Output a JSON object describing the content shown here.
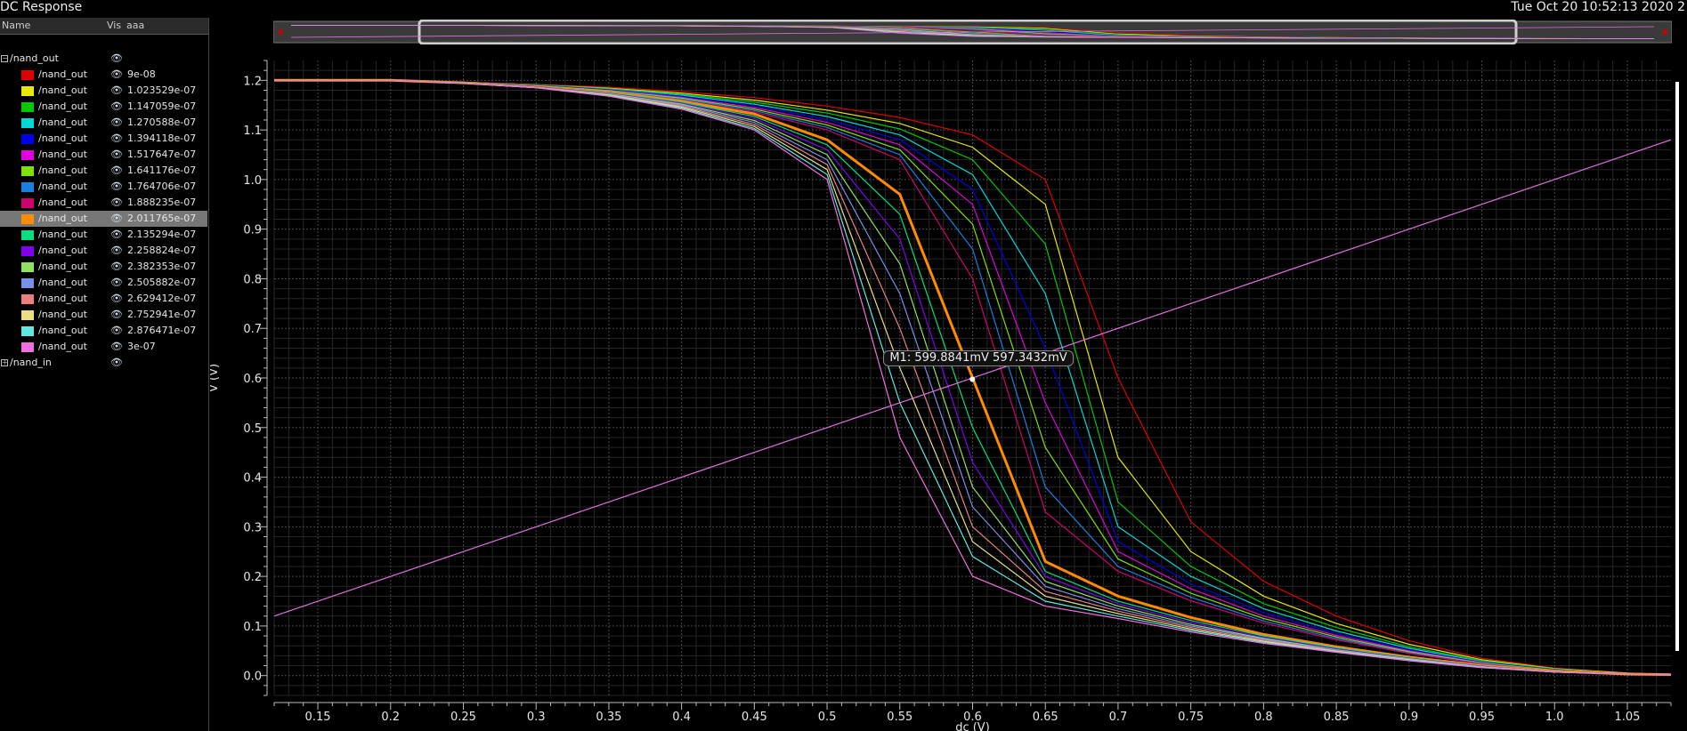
{
  "window": {
    "title": "DC Response",
    "date": "Tue Oct 20 10:52:13 2020  2"
  },
  "panel": {
    "headers": {
      "name": "Name",
      "vis": "Vis",
      "aaa": "aaa"
    },
    "groups": [
      {
        "name": "/nand_out",
        "expanded": true,
        "expander": "−"
      },
      {
        "name": "/nand_in",
        "expanded": false,
        "expander": "+"
      }
    ],
    "eye_glyph": "👁",
    "items": [
      {
        "name": "/nand_out",
        "value": "9e-08",
        "color": "#e00000"
      },
      {
        "name": "/nand_out",
        "value": "1.023529e-07",
        "color": "#e8e800"
      },
      {
        "name": "/nand_out",
        "value": "1.147059e-07",
        "color": "#00c800"
      },
      {
        "name": "/nand_out",
        "value": "1.270588e-07",
        "color": "#00d8d8"
      },
      {
        "name": "/nand_out",
        "value": "1.394118e-07",
        "color": "#0000e8"
      },
      {
        "name": "/nand_out",
        "value": "1.517647e-07",
        "color": "#e000e0"
      },
      {
        "name": "/nand_out",
        "value": "1.641176e-07",
        "color": "#80e000"
      },
      {
        "name": "/nand_out",
        "value": "1.764706e-07",
        "color": "#1880e0"
      },
      {
        "name": "/nand_out",
        "value": "1.888235e-07",
        "color": "#d00070"
      },
      {
        "name": "/nand_out",
        "value": "2.011765e-07",
        "color": "#ff8c00",
        "selected": true
      },
      {
        "name": "/nand_out",
        "value": "2.135294e-07",
        "color": "#00e080"
      },
      {
        "name": "/nand_out",
        "value": "2.258824e-07",
        "color": "#8000f0"
      },
      {
        "name": "/nand_out",
        "value": "2.382353e-07",
        "color": "#90e060"
      },
      {
        "name": "/nand_out",
        "value": "2.505882e-07",
        "color": "#7890e8"
      },
      {
        "name": "/nand_out",
        "value": "2.629412e-07",
        "color": "#e88080"
      },
      {
        "name": "/nand_out",
        "value": "2.752941e-07",
        "color": "#e8e080"
      },
      {
        "name": "/nand_out",
        "value": "2.876471e-07",
        "color": "#60e8e0"
      },
      {
        "name": "/nand_out",
        "value": "3e-07",
        "color": "#f070e0"
      }
    ]
  },
  "marker": {
    "label": "M1: 599.8841mV 597.3432mV",
    "x": 0.5999,
    "y": 0.5973
  },
  "chart_data": {
    "type": "line",
    "xlabel": "dc (V)",
    "ylabel": "V (V)",
    "xlim": [
      0.12,
      1.08
    ],
    "ylim": [
      -0.04,
      1.24
    ],
    "xticks": [
      0.15,
      0.2,
      0.25,
      0.3,
      0.35,
      0.4,
      0.45,
      0.5,
      0.55,
      0.6,
      0.65,
      0.7,
      0.75,
      0.8,
      0.85,
      0.9,
      0.95,
      1.0,
      1.05
    ],
    "xtick_labels": [
      "0.15",
      "0.2",
      "0.25",
      "0.3",
      "0.35",
      "0.4",
      "0.45",
      "0.5",
      "0.55",
      "0.6",
      "0.65",
      "0.7",
      "0.75",
      "0.8",
      "0.85",
      "0.9",
      "0.95",
      "1.0",
      "1.05"
    ],
    "yticks": [
      0.0,
      0.1,
      0.2,
      0.3,
      0.4,
      0.5,
      0.6,
      0.7,
      0.8,
      0.9,
      1.0,
      1.1,
      1.2
    ],
    "ytick_labels": [
      "0.0",
      "0.1",
      "0.2",
      "0.3",
      "0.4",
      "0.5",
      "0.6",
      "0.7",
      "0.8",
      "0.9",
      "1.0",
      "1.1",
      "1.2"
    ],
    "grid": true,
    "x": [
      0.12,
      0.2,
      0.25,
      0.3,
      0.35,
      0.4,
      0.45,
      0.5,
      0.55,
      0.6,
      0.65,
      0.7,
      0.75,
      0.8,
      0.85,
      0.9,
      0.95,
      1.0,
      1.05,
      1.08
    ],
    "series": [
      {
        "name": "/nand_out 9e-08",
        "color": "#e00000",
        "values": [
          1.2,
          1.2,
          1.196,
          1.192,
          1.186,
          1.177,
          1.165,
          1.148,
          1.125,
          1.09,
          1.0,
          0.6,
          0.31,
          0.19,
          0.12,
          0.07,
          0.035,
          0.015,
          0.005,
          0.002
        ]
      },
      {
        "name": "/nand_out 1.023529e-07",
        "color": "#e8e800",
        "values": [
          1.2,
          1.2,
          1.196,
          1.191,
          1.184,
          1.174,
          1.16,
          1.14,
          1.113,
          1.065,
          0.95,
          0.44,
          0.25,
          0.16,
          0.105,
          0.063,
          0.032,
          0.014,
          0.005,
          0.002
        ]
      },
      {
        "name": "/nand_out 1.147059e-07",
        "color": "#00c800",
        "values": [
          1.2,
          1.2,
          1.196,
          1.191,
          1.183,
          1.172,
          1.156,
          1.134,
          1.102,
          1.04,
          0.87,
          0.35,
          0.22,
          0.145,
          0.097,
          0.058,
          0.03,
          0.013,
          0.004,
          0.002
        ]
      },
      {
        "name": "/nand_out 1.270588e-07",
        "color": "#00d8d8",
        "values": [
          1.2,
          1.2,
          1.196,
          1.19,
          1.182,
          1.17,
          1.152,
          1.127,
          1.09,
          1.01,
          0.77,
          0.3,
          0.2,
          0.135,
          0.09,
          0.055,
          0.028,
          0.012,
          0.004,
          0.002
        ]
      },
      {
        "name": "/nand_out 1.394118e-07",
        "color": "#0000e8",
        "values": [
          1.2,
          1.2,
          1.196,
          1.19,
          1.181,
          1.168,
          1.149,
          1.121,
          1.08,
          0.98,
          0.66,
          0.27,
          0.185,
          0.127,
          0.085,
          0.052,
          0.027,
          0.012,
          0.004,
          0.002
        ]
      },
      {
        "name": "/nand_out 1.517647e-07",
        "color": "#e000e0",
        "values": [
          1.2,
          1.2,
          1.195,
          1.189,
          1.18,
          1.166,
          1.145,
          1.115,
          1.07,
          0.95,
          0.55,
          0.25,
          0.175,
          0.12,
          0.081,
          0.05,
          0.026,
          0.011,
          0.004,
          0.002
        ]
      },
      {
        "name": "/nand_out 1.641176e-07",
        "color": "#80e000",
        "values": [
          1.2,
          1.2,
          1.195,
          1.189,
          1.179,
          1.164,
          1.142,
          1.11,
          1.06,
          0.91,
          0.46,
          0.235,
          0.166,
          0.115,
          0.078,
          0.048,
          0.025,
          0.011,
          0.004,
          0.002
        ]
      },
      {
        "name": "/nand_out 1.764706e-07",
        "color": "#1880e0",
        "values": [
          1.2,
          1.2,
          1.195,
          1.188,
          1.178,
          1.162,
          1.139,
          1.105,
          1.05,
          0.86,
          0.38,
          0.22,
          0.158,
          0.11,
          0.075,
          0.046,
          0.024,
          0.01,
          0.004,
          0.002
        ]
      },
      {
        "name": "/nand_out 1.888235e-07",
        "color": "#d00070",
        "values": [
          1.2,
          1.2,
          1.195,
          1.188,
          1.177,
          1.16,
          1.136,
          1.1,
          1.04,
          0.8,
          0.33,
          0.21,
          0.151,
          0.106,
          0.072,
          0.045,
          0.023,
          0.01,
          0.004,
          0.002
        ]
      },
      {
        "name": "/nand_out 2.011765e-07",
        "color": "#ff8c00",
        "values": [
          1.2,
          1.2,
          1.195,
          1.187,
          1.176,
          1.158,
          1.132,
          1.08,
          0.97,
          0.6,
          0.23,
          0.16,
          0.117,
          0.083,
          0.058,
          0.037,
          0.02,
          0.009,
          0.003,
          0.002
        ]
      },
      {
        "name": "/nand_out 2.135294e-07",
        "color": "#00e080",
        "values": [
          1.2,
          1.2,
          1.195,
          1.187,
          1.175,
          1.156,
          1.127,
          1.07,
          0.93,
          0.5,
          0.21,
          0.15,
          0.111,
          0.08,
          0.056,
          0.036,
          0.019,
          0.008,
          0.003,
          0.002
        ]
      },
      {
        "name": "/nand_out 2.258824e-07",
        "color": "#8000f0",
        "values": [
          1.2,
          1.2,
          1.195,
          1.187,
          1.174,
          1.154,
          1.123,
          1.06,
          0.88,
          0.43,
          0.2,
          0.145,
          0.107,
          0.077,
          0.054,
          0.035,
          0.019,
          0.008,
          0.003,
          0.002
        ]
      },
      {
        "name": "/nand_out 2.382353e-07",
        "color": "#90e060",
        "values": [
          1.2,
          1.2,
          1.195,
          1.186,
          1.173,
          1.152,
          1.119,
          1.05,
          0.83,
          0.38,
          0.19,
          0.14,
          0.103,
          0.075,
          0.052,
          0.034,
          0.018,
          0.008,
          0.003,
          0.002
        ]
      },
      {
        "name": "/nand_out 2.505882e-07",
        "color": "#7890e8",
        "values": [
          1.2,
          1.2,
          1.194,
          1.186,
          1.172,
          1.15,
          1.115,
          1.04,
          0.77,
          0.34,
          0.18,
          0.135,
          0.1,
          0.073,
          0.051,
          0.033,
          0.018,
          0.008,
          0.003,
          0.002
        ]
      },
      {
        "name": "/nand_out 2.629412e-07",
        "color": "#e88080",
        "values": [
          1.2,
          1.2,
          1.194,
          1.186,
          1.171,
          1.148,
          1.111,
          1.03,
          0.7,
          0.3,
          0.17,
          0.13,
          0.097,
          0.071,
          0.05,
          0.032,
          0.017,
          0.008,
          0.003,
          0.002
        ]
      },
      {
        "name": "/nand_out 2.752941e-07",
        "color": "#e8e080",
        "values": [
          1.2,
          1.2,
          1.194,
          1.185,
          1.17,
          1.146,
          1.107,
          1.02,
          0.62,
          0.27,
          0.16,
          0.125,
          0.094,
          0.069,
          0.049,
          0.032,
          0.017,
          0.007,
          0.003,
          0.002
        ]
      },
      {
        "name": "/nand_out 2.876471e-07",
        "color": "#60e8e0",
        "values": [
          1.2,
          1.2,
          1.194,
          1.185,
          1.169,
          1.144,
          1.103,
          1.01,
          0.55,
          0.24,
          0.15,
          0.12,
          0.091,
          0.067,
          0.048,
          0.031,
          0.017,
          0.007,
          0.003,
          0.002
        ]
      },
      {
        "name": "/nand_out 3e-07",
        "color": "#f070e0",
        "values": [
          1.2,
          1.2,
          1.194,
          1.185,
          1.168,
          1.142,
          1.1,
          1.0,
          0.48,
          0.2,
          0.14,
          0.115,
          0.088,
          0.065,
          0.047,
          0.03,
          0.016,
          0.007,
          0.003,
          0.002
        ]
      },
      {
        "name": "/nand_in",
        "color": "#e070e0",
        "x": [
          0.12,
          1.08
        ],
        "values": [
          0.12,
          1.08
        ]
      }
    ]
  }
}
